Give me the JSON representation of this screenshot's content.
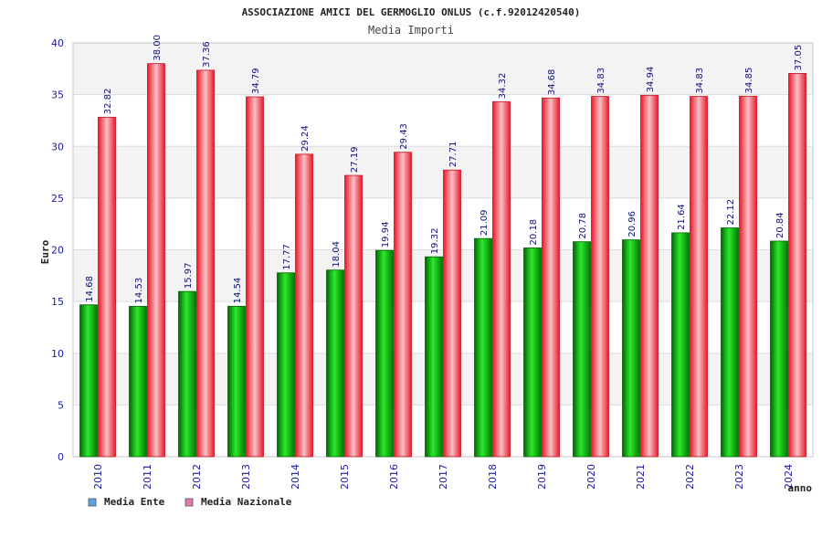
{
  "chart_data": {
    "type": "bar",
    "title": "ASSOCIAZIONE AMICI DEL GERMOGLIO ONLUS (c.f.92012420540)",
    "subtitle": "Media Importi",
    "xlabel": "anno",
    "ylabel": "Euro",
    "ylim": [
      0,
      40
    ],
    "yticks": [
      "0",
      "5",
      "10",
      "15",
      "20",
      "25",
      "30",
      "35",
      "40"
    ],
    "categories": [
      "2010",
      "2011",
      "2012",
      "2013",
      "2014",
      "2015",
      "2016",
      "2017",
      "2018",
      "2019",
      "2020",
      "2021",
      "2022",
      "2023",
      "2024"
    ],
    "series": [
      {
        "name": "Media Ente",
        "values": [
          14.68,
          14.53,
          15.97,
          14.54,
          17.77,
          18.04,
          19.94,
          19.32,
          21.09,
          20.18,
          20.78,
          20.96,
          21.64,
          22.12,
          20.84
        ],
        "labels": [
          "14.68",
          "14.53",
          "15.97",
          "14.54",
          "17.77",
          "18.04",
          "19.94",
          "19.32",
          "21.09",
          "20.18",
          "20.78",
          "20.96",
          "21.64",
          "22.12",
          "20.84"
        ],
        "color": "#00a000",
        "legend_color": "#5aa0e8"
      },
      {
        "name": "Media Nazionale",
        "values": [
          32.82,
          38.0,
          37.36,
          34.79,
          29.24,
          27.19,
          29.43,
          27.71,
          34.32,
          34.68,
          34.83,
          34.94,
          34.83,
          34.85,
          37.05
        ],
        "labels": [
          "32.82",
          "38.00",
          "37.36",
          "34.79",
          "29.24",
          "27.19",
          "29.43",
          "27.71",
          "34.32",
          "34.68",
          "34.83",
          "34.94",
          "34.83",
          "34.85",
          "37.05"
        ],
        "color": "#e8192c",
        "legend_color": "#e07ab0"
      }
    ],
    "grid": true,
    "grid_bands": true,
    "legend_position": "bottom-left"
  }
}
